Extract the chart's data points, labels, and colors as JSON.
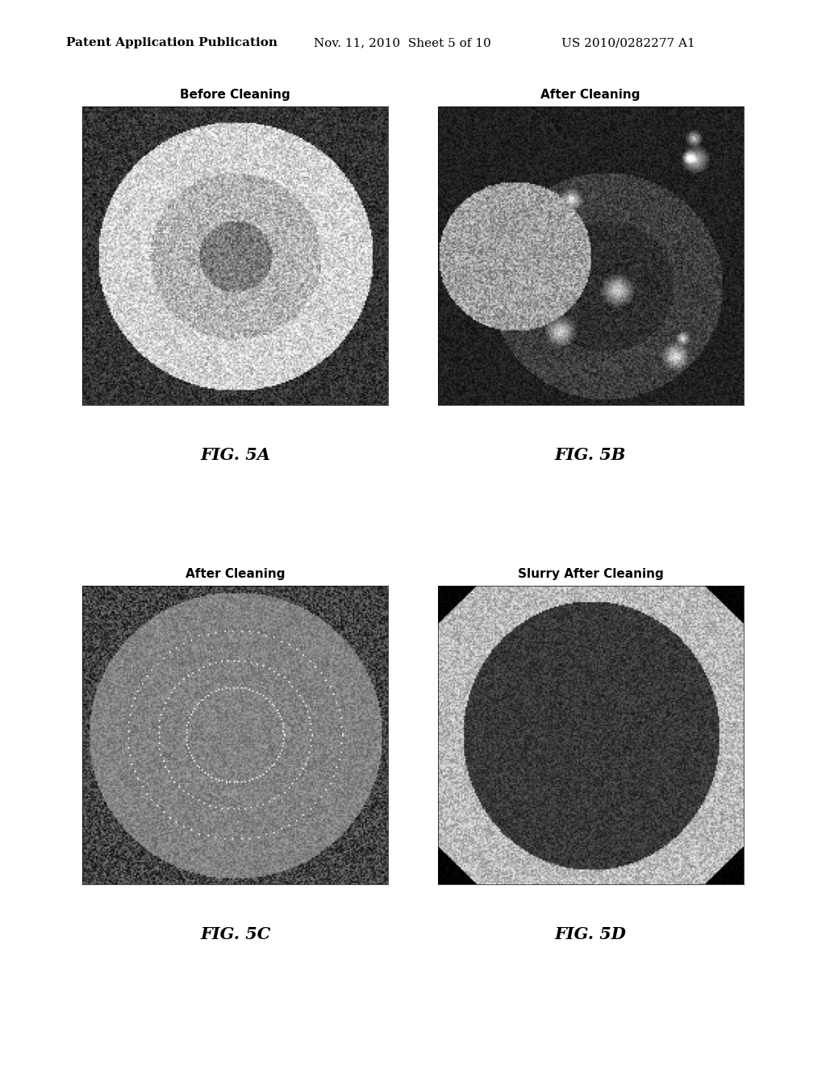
{
  "background_color": "#ffffff",
  "header_left": "Patent Application Publication",
  "header_center": "Nov. 11, 2010  Sheet 5 of 10",
  "header_right": "US 2010/0282277 A1",
  "header_fontsize": 11,
  "figures": [
    {
      "label": "Before Cleaning",
      "fig_label": "FIG. 5A",
      "row": 0,
      "col": 0
    },
    {
      "label": "After Cleaning",
      "fig_label": "FIG. 5B",
      "row": 0,
      "col": 1
    },
    {
      "label": "After Cleaning",
      "fig_label": "FIG. 5C",
      "row": 1,
      "col": 0
    },
    {
      "label": "Slurry After Cleaning",
      "fig_label": "FIG. 5D",
      "row": 1,
      "col": 1
    }
  ],
  "label_fontsize": 11,
  "figlabel_fontsize": 15
}
